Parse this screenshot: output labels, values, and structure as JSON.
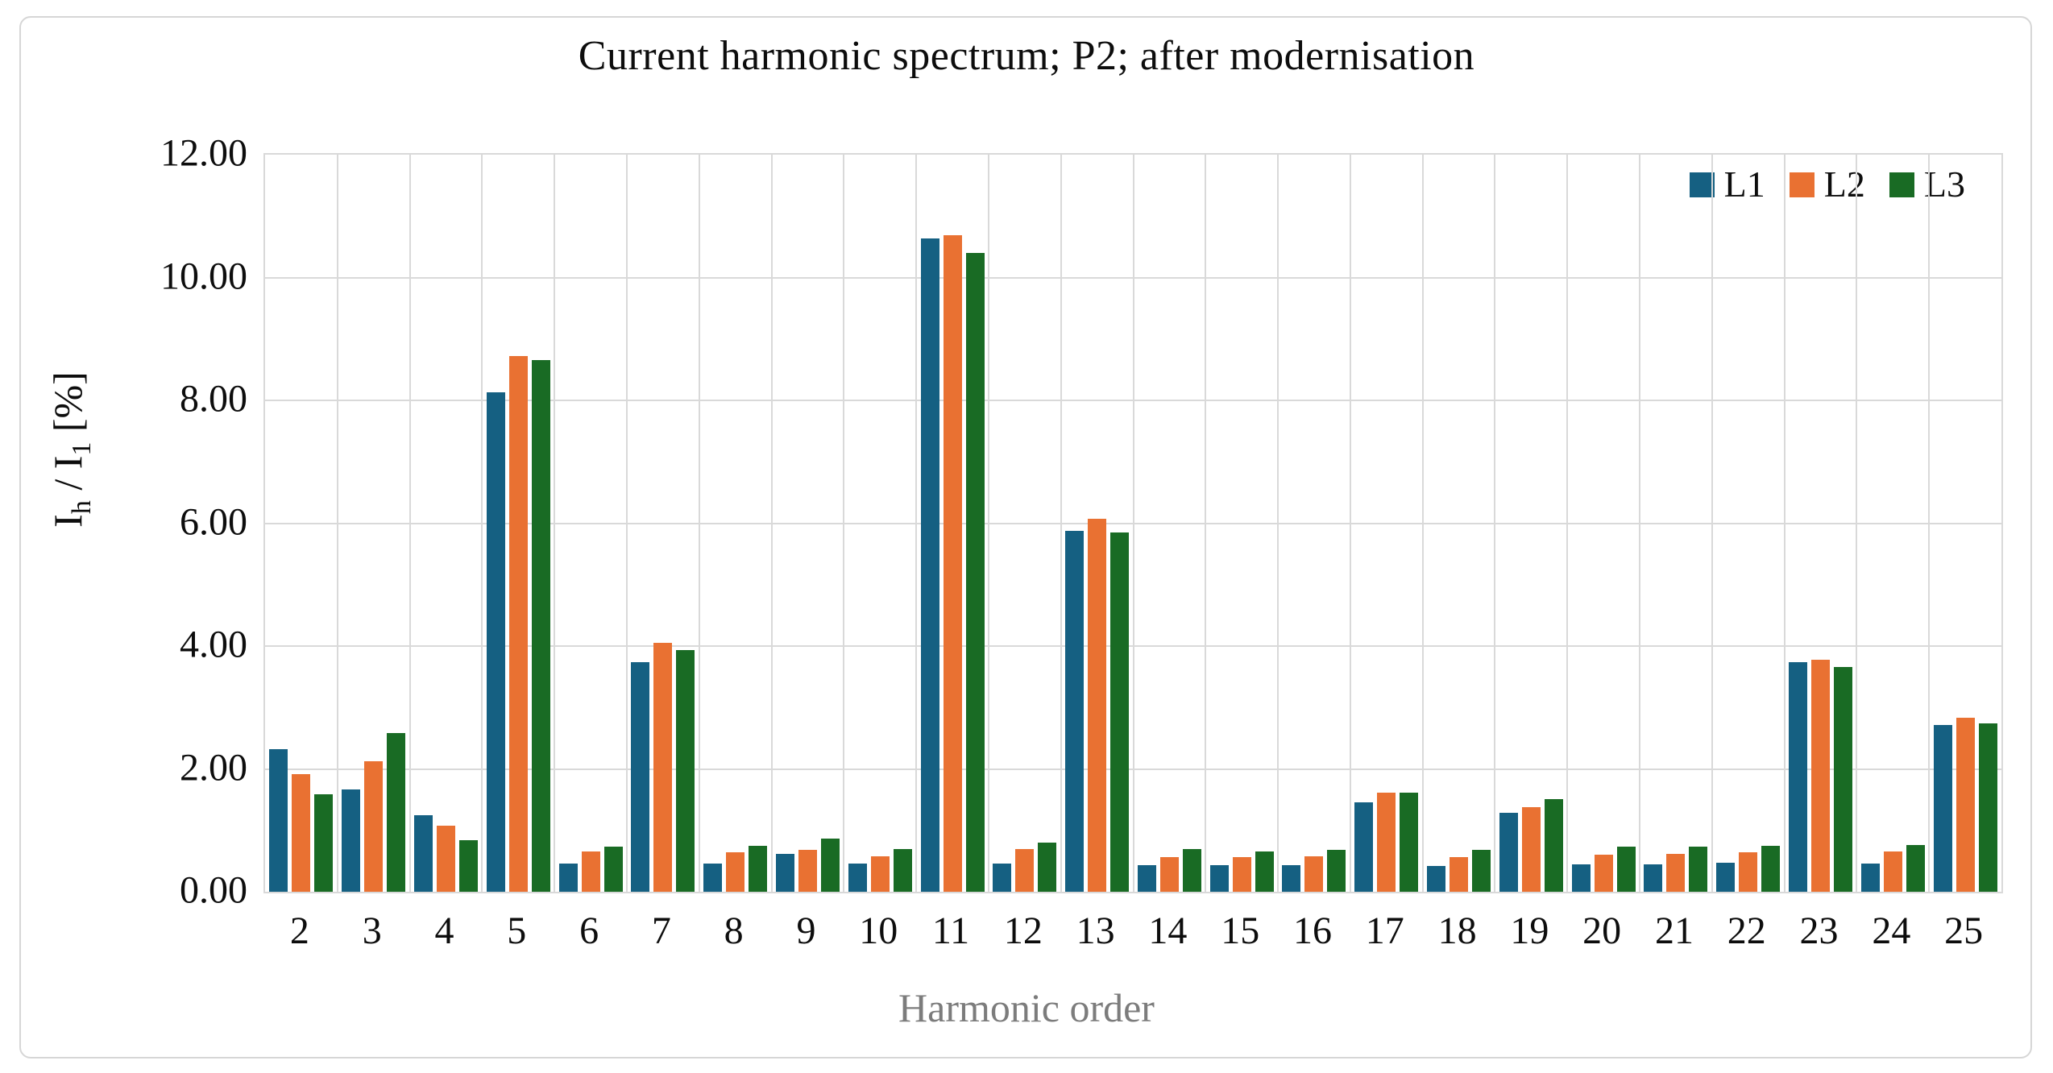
{
  "chart_data": {
    "type": "bar",
    "title": "Current harmonic spectrum; P2; after modernisation",
    "xlabel": "Harmonic order",
    "ylabel_parts": {
      "base": "I",
      "sub1": "h",
      "mid": " / I",
      "sub2": "1",
      "unit": "  [%]"
    },
    "ylabel_plain": "Ih / I1 [%]",
    "categories": [
      2,
      3,
      4,
      5,
      6,
      7,
      8,
      9,
      10,
      11,
      12,
      13,
      14,
      15,
      16,
      17,
      18,
      19,
      20,
      21,
      22,
      23,
      24,
      25
    ],
    "series": [
      {
        "name": "L1",
        "color": "#156082",
        "values": [
          2.32,
          1.67,
          1.25,
          8.13,
          0.46,
          3.74,
          0.46,
          0.62,
          0.46,
          10.63,
          0.46,
          5.87,
          0.43,
          0.43,
          0.43,
          1.46,
          0.42,
          1.29,
          0.45,
          0.45,
          0.47,
          3.74,
          0.46,
          2.72
        ]
      },
      {
        "name": "L2",
        "color": "#E97132",
        "values": [
          1.92,
          2.13,
          1.08,
          8.72,
          0.65,
          4.05,
          0.64,
          0.68,
          0.58,
          10.69,
          0.7,
          6.07,
          0.57,
          0.57,
          0.58,
          1.61,
          0.57,
          1.38,
          0.61,
          0.62,
          0.64,
          3.78,
          0.66,
          2.83
        ]
      },
      {
        "name": "L3",
        "color": "#196B24",
        "values": [
          1.59,
          2.59,
          0.84,
          8.65,
          0.74,
          3.93,
          0.75,
          0.86,
          0.7,
          10.4,
          0.8,
          5.85,
          0.69,
          0.66,
          0.68,
          1.61,
          0.68,
          1.51,
          0.74,
          0.74,
          0.75,
          3.66,
          0.76,
          2.74
        ]
      }
    ],
    "ylim": [
      0,
      12
    ],
    "ytick_step": 2,
    "ytick_labels": [
      "0.00",
      "2.00",
      "4.00",
      "6.00",
      "8.00",
      "10.00",
      "12.00"
    ],
    "grid": "horizontal gridlines each 2.00 plus vertical category separators",
    "legend_position": "top-right inside plot",
    "colors": {
      "gridline": "#d9d9d9",
      "axis_text": "#0d0d0d",
      "xlabel_text": "#7c7c7c",
      "frame_border": "#d6d6d6"
    }
  }
}
